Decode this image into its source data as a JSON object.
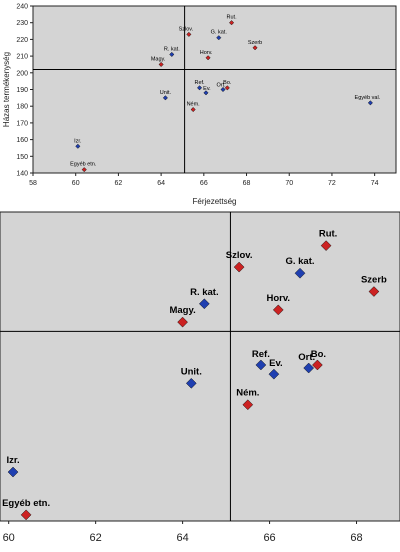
{
  "chart_data": [
    {
      "type": "scatter",
      "xlabel": "Férjezettség",
      "ylabel": "Házas termékenység",
      "xlim": [
        58,
        75
      ],
      "ylim": [
        140,
        240
      ],
      "x_ticks": [
        "58",
        "60",
        "62",
        "64",
        "66",
        "68",
        "70",
        "72",
        "74"
      ],
      "y_ticks": [
        "140",
        "150",
        "160",
        "170",
        "180",
        "190",
        "200",
        "210",
        "220",
        "230",
        "240"
      ],
      "grid": false,
      "reference_lines": {
        "x": 65.1,
        "y": 202
      },
      "colors": {
        "red": "#cc2222",
        "blue": "#1f3fb0",
        "plot_bg": "#d4d4d4"
      },
      "points": [
        {
          "label": "Rut.",
          "x": 67.3,
          "y": 230,
          "color": "red"
        },
        {
          "label": "Szlov.",
          "x": 65.3,
          "y": 223,
          "color": "red"
        },
        {
          "label": "G. kat.",
          "x": 66.7,
          "y": 221,
          "color": "blue"
        },
        {
          "label": "Szerb",
          "x": 68.4,
          "y": 215,
          "color": "red"
        },
        {
          "label": "R. kat.",
          "x": 64.5,
          "y": 211,
          "color": "blue"
        },
        {
          "label": "Horv.",
          "x": 66.2,
          "y": 209,
          "color": "red"
        },
        {
          "label": "Magy.",
          "x": 64.0,
          "y": 205,
          "color": "red"
        },
        {
          "label": "Bo.",
          "x": 67.1,
          "y": 191,
          "color": "red"
        },
        {
          "label": "Ref.",
          "x": 65.8,
          "y": 191,
          "color": "blue"
        },
        {
          "label": "Ort.",
          "x": 66.9,
          "y": 190,
          "color": "blue"
        },
        {
          "label": "Ev.",
          "x": 66.1,
          "y": 188,
          "color": "blue"
        },
        {
          "label": "Unit.",
          "x": 64.2,
          "y": 185,
          "color": "blue"
        },
        {
          "label": "Egyéb val.",
          "x": 73.8,
          "y": 182,
          "color": "blue"
        },
        {
          "label": "Ném.",
          "x": 65.5,
          "y": 178,
          "color": "red"
        },
        {
          "label": "Izr.",
          "x": 60.1,
          "y": 156,
          "color": "blue"
        },
        {
          "label": "Egyéb etn.",
          "x": 60.4,
          "y": 142,
          "color": "red"
        }
      ]
    },
    {
      "type": "scatter",
      "xlabel": "",
      "ylabel": "",
      "xlim": [
        59.8,
        69.0
      ],
      "ylim": [
        140,
        241
      ],
      "x_ticks": [
        "60",
        "62",
        "64",
        "66",
        "68"
      ],
      "grid": false,
      "reference_lines": {
        "x": 65.1,
        "y": 202
      },
      "colors": {
        "red": "#cc2222",
        "blue": "#1f3fb0",
        "plot_bg": "#d4d4d4"
      },
      "points": [
        {
          "label": "Rut.",
          "x": 67.3,
          "y": 230,
          "color": "red"
        },
        {
          "label": "Szlov.",
          "x": 65.3,
          "y": 223,
          "color": "red"
        },
        {
          "label": "G. kat.",
          "x": 66.7,
          "y": 221,
          "color": "blue"
        },
        {
          "label": "Szerb",
          "x": 68.4,
          "y": 215,
          "color": "red"
        },
        {
          "label": "R. kat.",
          "x": 64.5,
          "y": 211,
          "color": "blue"
        },
        {
          "label": "Horv.",
          "x": 66.2,
          "y": 209,
          "color": "red"
        },
        {
          "label": "Magy.",
          "x": 64.0,
          "y": 205,
          "color": "red"
        },
        {
          "label": "Bo.",
          "x": 67.1,
          "y": 191,
          "color": "red"
        },
        {
          "label": "Ref.",
          "x": 65.8,
          "y": 191,
          "color": "blue"
        },
        {
          "label": "Ort.",
          "x": 66.9,
          "y": 190,
          "color": "blue"
        },
        {
          "label": "Ev.",
          "x": 66.1,
          "y": 188,
          "color": "blue"
        },
        {
          "label": "Unit.",
          "x": 64.2,
          "y": 185,
          "color": "blue"
        },
        {
          "label": "Ném.",
          "x": 65.5,
          "y": 178,
          "color": "red"
        },
        {
          "label": "Izr.",
          "x": 60.1,
          "y": 156,
          "color": "blue"
        },
        {
          "label": "Egyéb etn.",
          "x": 60.4,
          "y": 142,
          "color": "red"
        }
      ]
    }
  ]
}
